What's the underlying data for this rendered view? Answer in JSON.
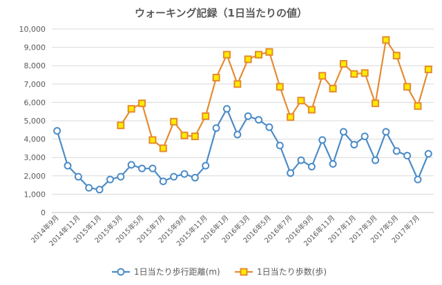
{
  "chart_data": {
    "type": "line",
    "title": "ウォーキング記録（1日当たりの値）",
    "xlabel": "",
    "ylabel": "",
    "ylim": [
      0,
      10000
    ],
    "yticks": [
      "0",
      "1,000",
      "2,000",
      "3,000",
      "4,000",
      "5,000",
      "6,000",
      "7,000",
      "8,000",
      "9,000",
      "10,000"
    ],
    "grid": true,
    "legend": "bottom",
    "categories": [
      "2014年9月",
      "2014年10月",
      "2014年11月",
      "2014年12月",
      "2015年1月",
      "2015年2月",
      "2015年3月",
      "2015年4月",
      "2015年5月",
      "2015年6月",
      "2015年7月",
      "2015年8月",
      "2015年9月",
      "2015年10月",
      "2015年11月",
      "2015年12月",
      "2016年1月",
      "2016年2月",
      "2016年3月",
      "2016年4月",
      "2016年5月",
      "2016年6月",
      "2016年7月",
      "2016年8月",
      "2016年9月",
      "2016年10月",
      "2016年11月",
      "2016年12月",
      "2017年1月",
      "2017年2月",
      "2017年3月",
      "2017年4月",
      "2017年5月",
      "2017年6月",
      "2017年7月",
      "2017年8月"
    ],
    "x_tick_labels": [
      "2014年9月",
      "2014年11月",
      "2015年1月",
      "2015年3月",
      "2015年5月",
      "2015年7月",
      "2015年9月",
      "2015年11月",
      "2016年1月",
      "2016年3月",
      "2016年5月",
      "2016年7月",
      "2016年9月",
      "2016年11月",
      "2017年1月",
      "2017年3月",
      "2017年5月",
      "2017年7月"
    ],
    "series": [
      {
        "name": "1日当たり歩行距離(m)",
        "color": "#4A8BC7",
        "marker": "circle",
        "values": [
          4450,
          2550,
          1950,
          1350,
          1250,
          1800,
          1950,
          2600,
          2400,
          2400,
          1700,
          1950,
          2100,
          1900,
          2550,
          4600,
          5650,
          4250,
          5250,
          5050,
          4650,
          3650,
          2150,
          2850,
          2500,
          3950,
          2650,
          4400,
          3700,
          4150,
          2850,
          4400,
          3350,
          3100,
          1800,
          3200
        ]
      },
      {
        "name": "1日当たり歩数(歩)",
        "color": "#E58A2E",
        "marker_fill": "#FFEB00",
        "marker": "square",
        "values": [
          null,
          null,
          null,
          null,
          null,
          null,
          4750,
          5650,
          5950,
          3950,
          3500,
          4950,
          4200,
          4150,
          5250,
          7350,
          8600,
          7000,
          8350,
          8600,
          8750,
          6850,
          5200,
          6100,
          5600,
          7450,
          6750,
          8100,
          7550,
          7600,
          5950,
          9400,
          8550,
          6850,
          5800,
          7800
        ]
      }
    ]
  }
}
